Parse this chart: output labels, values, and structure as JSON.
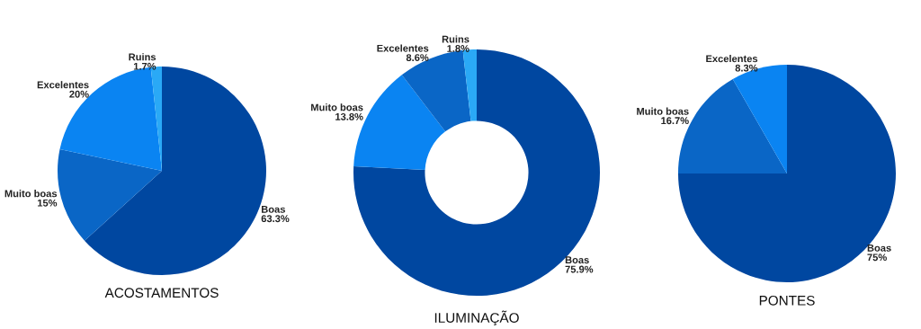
{
  "chart_data": [
    {
      "type": "pie",
      "title": "ACOSTAMENTOS",
      "categories": [
        "Boas",
        "Muito boas",
        "Excelentes",
        "Ruins"
      ],
      "values": [
        63.3,
        15,
        20,
        1.7
      ],
      "colors": [
        "#0047a0",
        "#0a66c6",
        "#0a84f2",
        "#2aa9f6"
      ],
      "value_labels": [
        "63.3%",
        "15%",
        "20%",
        "1.7%"
      ]
    },
    {
      "type": "donut",
      "title": "ILUMINAÇÃO",
      "categories": [
        "Boas",
        "Muito boas",
        "Excelentes",
        "Ruins"
      ],
      "values": [
        75.9,
        13.8,
        8.6,
        1.8
      ],
      "colors": [
        "#0047a0",
        "#0a84f2",
        "#0a66c6",
        "#2aa9f6"
      ],
      "value_labels": [
        "75.9%",
        "13.8%",
        "8.6%",
        "1.8%"
      ]
    },
    {
      "type": "pie",
      "title": "PONTES",
      "categories": [
        "Boas",
        "Muito boas",
        "Excelentes"
      ],
      "values": [
        75,
        16.7,
        8.3
      ],
      "colors": [
        "#0047a0",
        "#0a66c6",
        "#0a84f2"
      ],
      "value_labels": [
        "75%",
        "16.7%",
        "8.3%"
      ]
    }
  ]
}
